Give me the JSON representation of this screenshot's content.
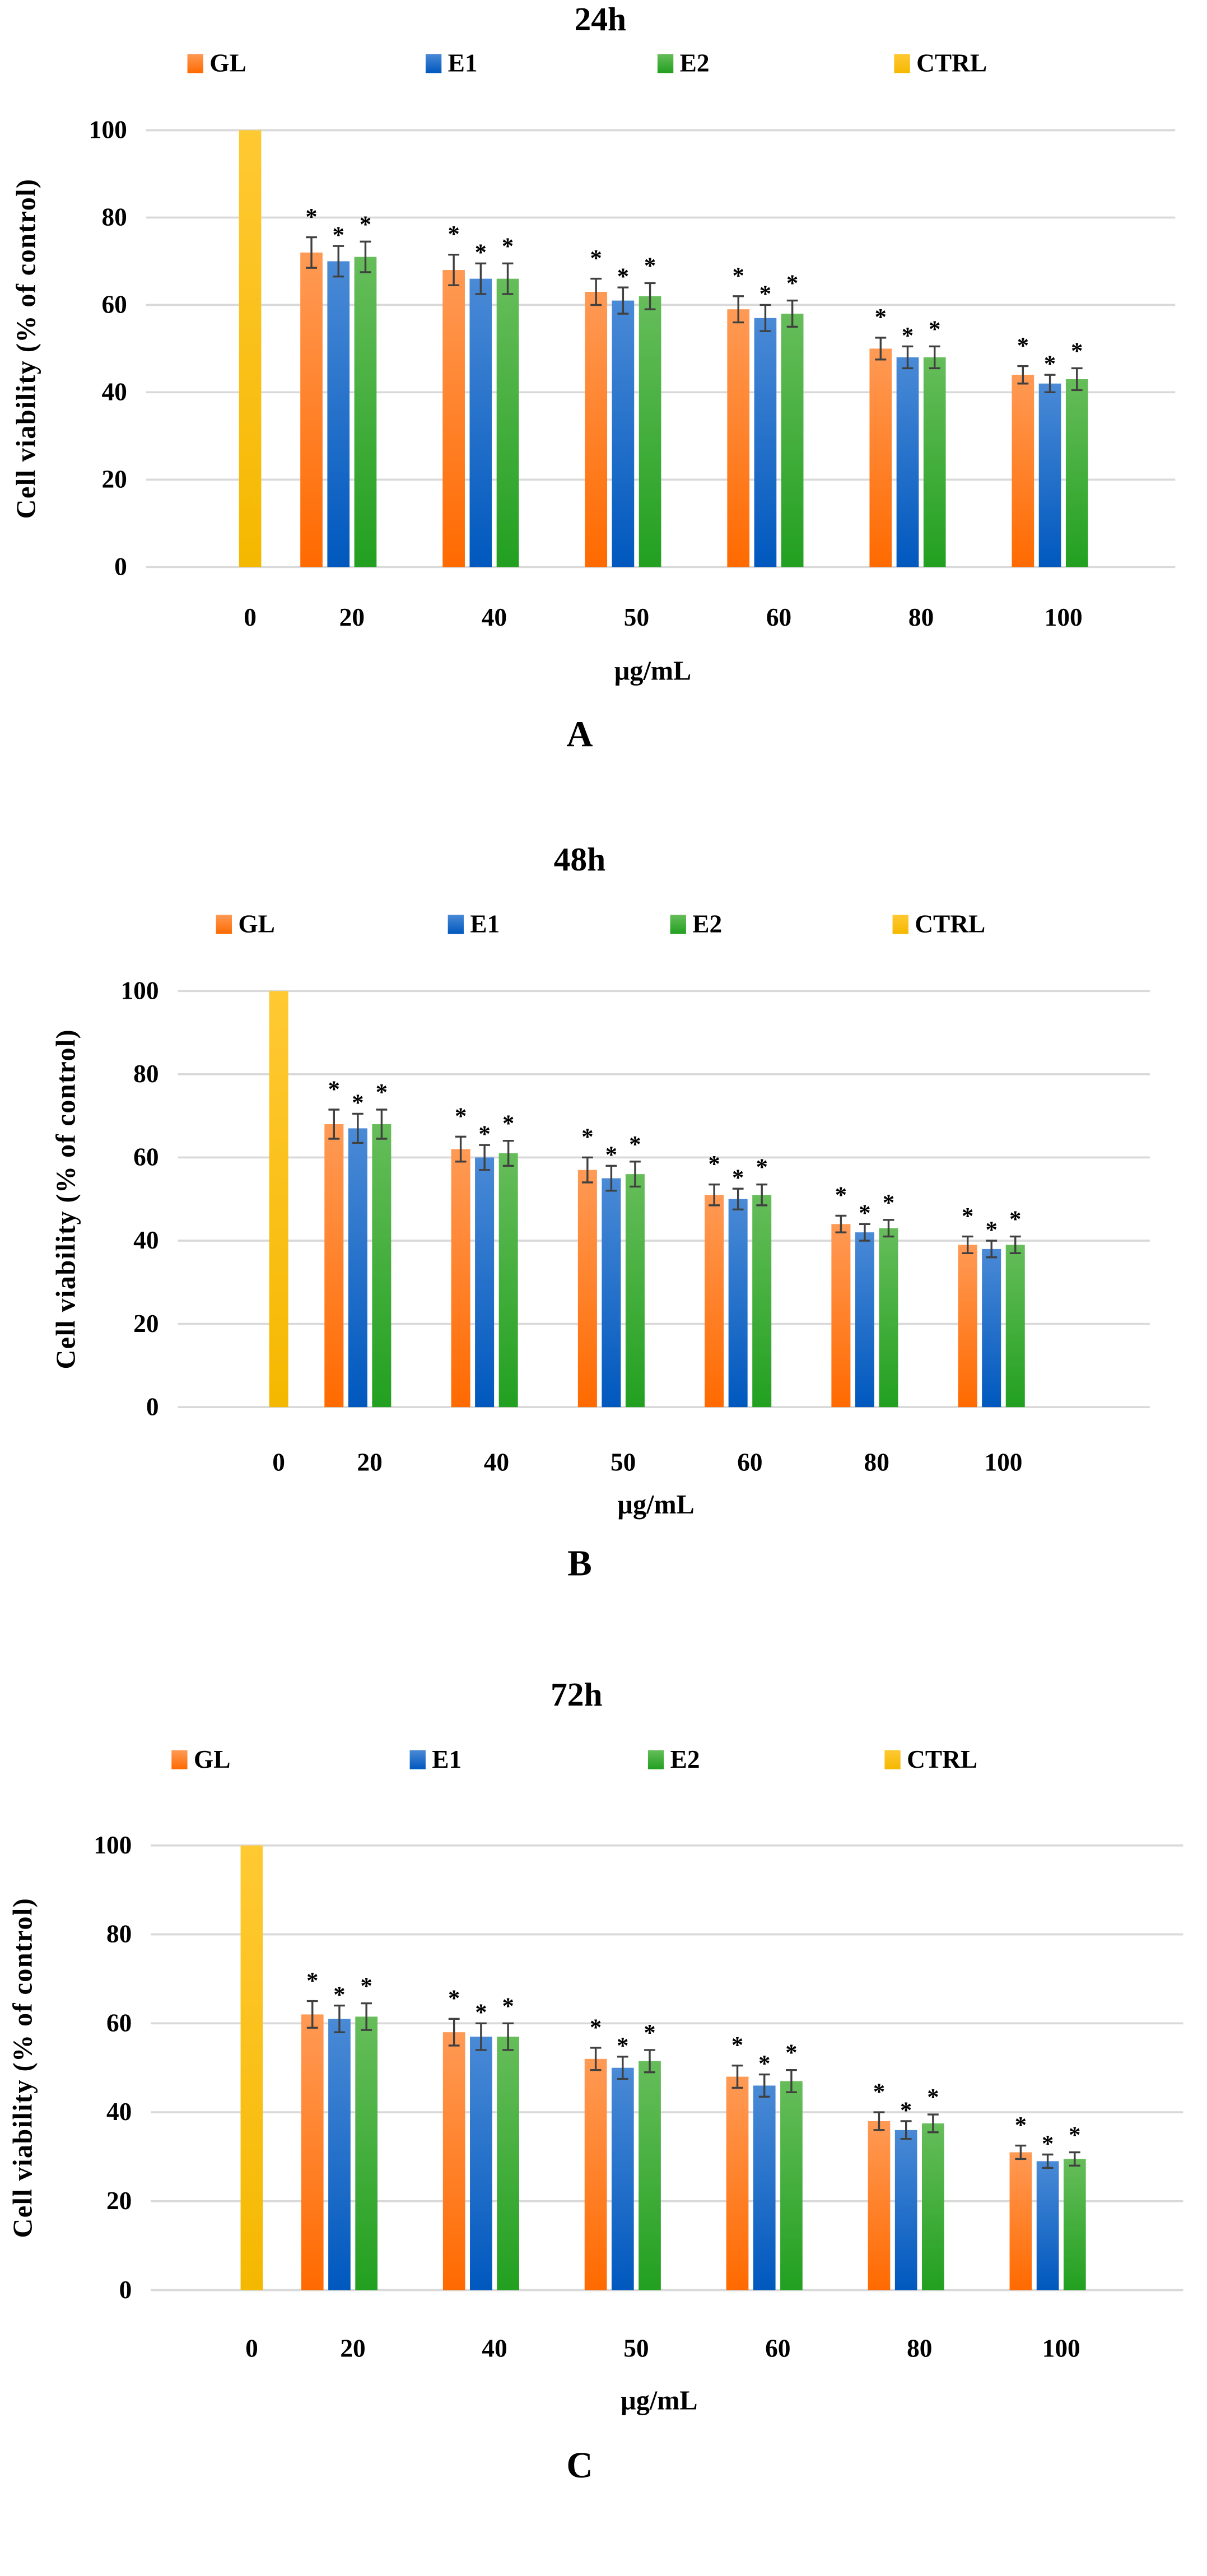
{
  "colors": {
    "GL": "#FF7A1F",
    "E1": "#1F6FCC",
    "E2": "#3BAA32",
    "CTRL": "#FFC000",
    "grid": "#D9D9D9",
    "error": "#404040"
  },
  "chart_data": [
    {
      "type": "bar",
      "title": "24h",
      "panel": "A",
      "xlabel": "µg/mL",
      "ylabel": "Cell viability (% of control)",
      "ylim": [
        0,
        100
      ],
      "yticks": [
        "0",
        "20",
        "40",
        "60",
        "80",
        "100"
      ],
      "grid": true,
      "legend_placement": "top",
      "categories": [
        "0",
        "20",
        "40",
        "50",
        "60",
        "80",
        "100"
      ],
      "series": [
        {
          "name": "GL",
          "values": [
            null,
            72,
            68,
            63,
            59,
            50,
            44
          ],
          "errors": [
            null,
            3.5,
            3.5,
            3,
            3,
            2.5,
            2
          ]
        },
        {
          "name": "E1",
          "values": [
            null,
            70,
            66,
            61,
            57,
            48,
            42
          ],
          "errors": [
            null,
            3.5,
            3.5,
            3,
            3,
            2.5,
            2
          ]
        },
        {
          "name": "E2",
          "values": [
            null,
            71,
            66,
            62,
            58,
            48,
            43
          ],
          "errors": [
            null,
            3.5,
            3.5,
            3,
            3,
            2.5,
            2.5
          ]
        },
        {
          "name": "CTRL",
          "values": [
            100,
            null,
            null,
            null,
            null,
            null,
            null
          ],
          "errors": [
            null,
            null,
            null,
            null,
            null,
            null,
            null
          ]
        }
      ],
      "significance_marker": "*"
    },
    {
      "type": "bar",
      "title": "48h",
      "panel": "B",
      "xlabel": "µg/mL",
      "ylabel": "Cell viability (% of control)",
      "ylim": [
        0,
        100
      ],
      "yticks": [
        "0",
        "20",
        "40",
        "60",
        "80",
        "100"
      ],
      "grid": true,
      "legend_placement": "top",
      "categories": [
        "0",
        "20",
        "40",
        "50",
        "60",
        "80",
        "100"
      ],
      "series": [
        {
          "name": "GL",
          "values": [
            null,
            68,
            62,
            57,
            51,
            44,
            39
          ],
          "errors": [
            null,
            3.5,
            3,
            3,
            2.5,
            2,
            2
          ]
        },
        {
          "name": "E1",
          "values": [
            null,
            67,
            60,
            55,
            50,
            42,
            38
          ],
          "errors": [
            null,
            3.5,
            3,
            3,
            2.5,
            2,
            2
          ]
        },
        {
          "name": "E2",
          "values": [
            null,
            68,
            61,
            56,
            51,
            43,
            39
          ],
          "errors": [
            null,
            3.5,
            3,
            3,
            2.5,
            2,
            2
          ]
        },
        {
          "name": "CTRL",
          "values": [
            100,
            null,
            null,
            null,
            null,
            null,
            null
          ],
          "errors": [
            null,
            null,
            null,
            null,
            null,
            null,
            null
          ]
        }
      ],
      "significance_marker": "*"
    },
    {
      "type": "bar",
      "title": "72h",
      "panel": "C",
      "xlabel": "µg/mL",
      "ylabel": "Cell viability (% of control)",
      "ylim": [
        0,
        100
      ],
      "yticks": [
        "0",
        "20",
        "40",
        "60",
        "80",
        "100"
      ],
      "grid": true,
      "legend_placement": "top",
      "categories": [
        "0",
        "20",
        "40",
        "50",
        "60",
        "80",
        "100"
      ],
      "series": [
        {
          "name": "GL",
          "values": [
            null,
            62,
            58,
            52,
            48,
            38,
            31
          ],
          "errors": [
            null,
            3,
            3,
            2.5,
            2.5,
            2,
            1.5
          ]
        },
        {
          "name": "E1",
          "values": [
            null,
            61,
            57,
            50,
            46,
            36,
            29
          ],
          "errors": [
            null,
            3,
            3,
            2.5,
            2.5,
            2,
            1.5
          ]
        },
        {
          "name": "E2",
          "values": [
            null,
            61.5,
            57,
            51.5,
            47,
            37.5,
            29.5
          ],
          "errors": [
            null,
            3,
            3,
            2.5,
            2.5,
            2,
            1.5
          ]
        },
        {
          "name": "CTRL",
          "values": [
            100,
            null,
            null,
            null,
            null,
            null,
            null
          ],
          "errors": [
            null,
            null,
            null,
            null,
            null,
            null,
            null
          ]
        }
      ],
      "significance_marker": "*"
    }
  ]
}
